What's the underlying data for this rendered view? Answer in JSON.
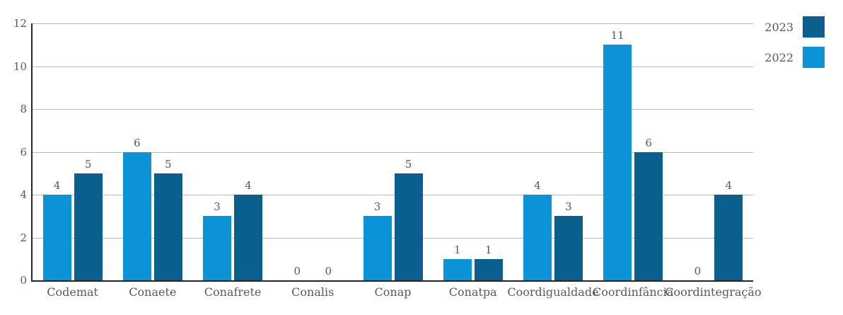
{
  "chart_data": {
    "type": "bar",
    "title": "",
    "xlabel": "",
    "ylabel": "",
    "categories": [
      "Codemat",
      "Conaete",
      "Conafrete",
      "Conalis",
      "Conap",
      "Conatpa",
      "Coordigualdade",
      "Coordinfância",
      "Coordintegração"
    ],
    "series": [
      {
        "name": "2023",
        "color": "#0a5f8f",
        "values": [
          5,
          5,
          4,
          0,
          5,
          1,
          3,
          6,
          4
        ]
      },
      {
        "name": "2022",
        "color": "#0c93d7",
        "values": [
          4,
          6,
          3,
          0,
          3,
          1,
          4,
          11,
          0
        ]
      }
    ],
    "bar_display_order": [
      "2022",
      "2023"
    ],
    "ylim": [
      0,
      12
    ],
    "yticks": [
      0,
      2,
      4,
      6,
      8,
      10,
      12
    ],
    "grid": true,
    "value_labels": true,
    "legend_position": "top-right"
  },
  "legend": {
    "items": [
      {
        "label": "2023",
        "color": "#0a5f8f"
      },
      {
        "label": "2022",
        "color": "#0c93d7"
      }
    ]
  },
  "colors": {
    "background": "#ffffff",
    "text": "#58585a",
    "gridline": "#b9b9b9",
    "axis": "#262626"
  }
}
